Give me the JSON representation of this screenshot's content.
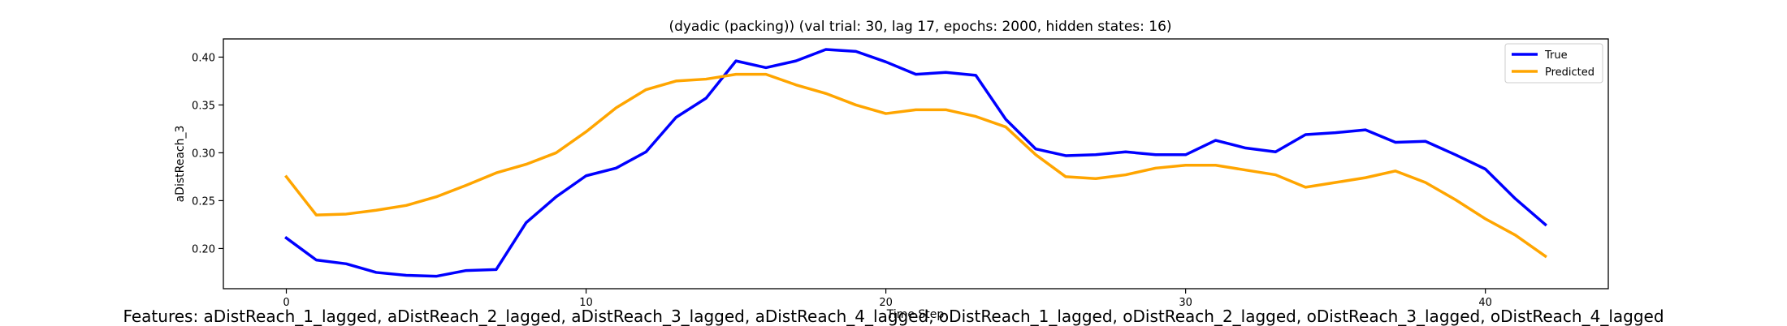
{
  "chart_data": {
    "type": "line",
    "title": "(dyadic (packing)) (val trial: 30, lag 17, epochs: 2000, hidden states: 16)",
    "xlabel": "Time Step",
    "ylabel": "aDistReach_3",
    "xlim": [
      -2.1,
      44.1
    ],
    "ylim": [
      0.158,
      0.419
    ],
    "xticks": [
      0,
      10,
      20,
      30,
      40
    ],
    "yticks": [
      0.2,
      0.25,
      0.3,
      0.35,
      0.4
    ],
    "xtick_labels": [
      "0",
      "10",
      "20",
      "30",
      "40"
    ],
    "ytick_labels": [
      "0.20",
      "0.25",
      "0.30",
      "0.35",
      "0.40"
    ],
    "grid": false,
    "legend_position": "top-right",
    "x": [
      0,
      1,
      2,
      3,
      4,
      5,
      6,
      7,
      8,
      9,
      10,
      11,
      12,
      13,
      14,
      15,
      16,
      17,
      18,
      19,
      20,
      21,
      22,
      23,
      24,
      25,
      26,
      27,
      28,
      29,
      30,
      31,
      32,
      33,
      34,
      35,
      36,
      37,
      38,
      39,
      40,
      41,
      42
    ],
    "series": [
      {
        "name": "True",
        "color": "#0000ff",
        "values": [
          0.211,
          0.188,
          0.184,
          0.175,
          0.172,
          0.171,
          0.177,
          0.178,
          0.227,
          0.254,
          0.276,
          0.284,
          0.301,
          0.337,
          0.357,
          0.396,
          0.389,
          0.396,
          0.408,
          0.406,
          0.395,
          0.382,
          0.384,
          0.381,
          0.335,
          0.304,
          0.297,
          0.298,
          0.301,
          0.298,
          0.298,
          0.313,
          0.305,
          0.301,
          0.319,
          0.321,
          0.324,
          0.311,
          0.312,
          0.298,
          0.283,
          0.252,
          0.225
        ]
      },
      {
        "name": "Predicted",
        "color": "#ffa500",
        "values": [
          0.275,
          0.235,
          0.236,
          0.24,
          0.245,
          0.254,
          0.266,
          0.279,
          0.288,
          0.3,
          0.322,
          0.347,
          0.366,
          0.375,
          0.377,
          0.382,
          0.382,
          0.371,
          0.362,
          0.35,
          0.341,
          0.345,
          0.345,
          0.338,
          0.327,
          0.298,
          0.275,
          0.273,
          0.277,
          0.284,
          0.287,
          0.287,
          0.282,
          0.277,
          0.264,
          0.269,
          0.274,
          0.281,
          0.269,
          0.251,
          0.231,
          0.214,
          0.192
        ]
      }
    ]
  },
  "caption": "Features: aDistReach_1_lagged, aDistReach_2_lagged, aDistReach_3_lagged, aDistReach_4_lagged, oDistReach_1_lagged, oDistReach_2_lagged, oDistReach_3_lagged, oDistReach_4_lagged"
}
